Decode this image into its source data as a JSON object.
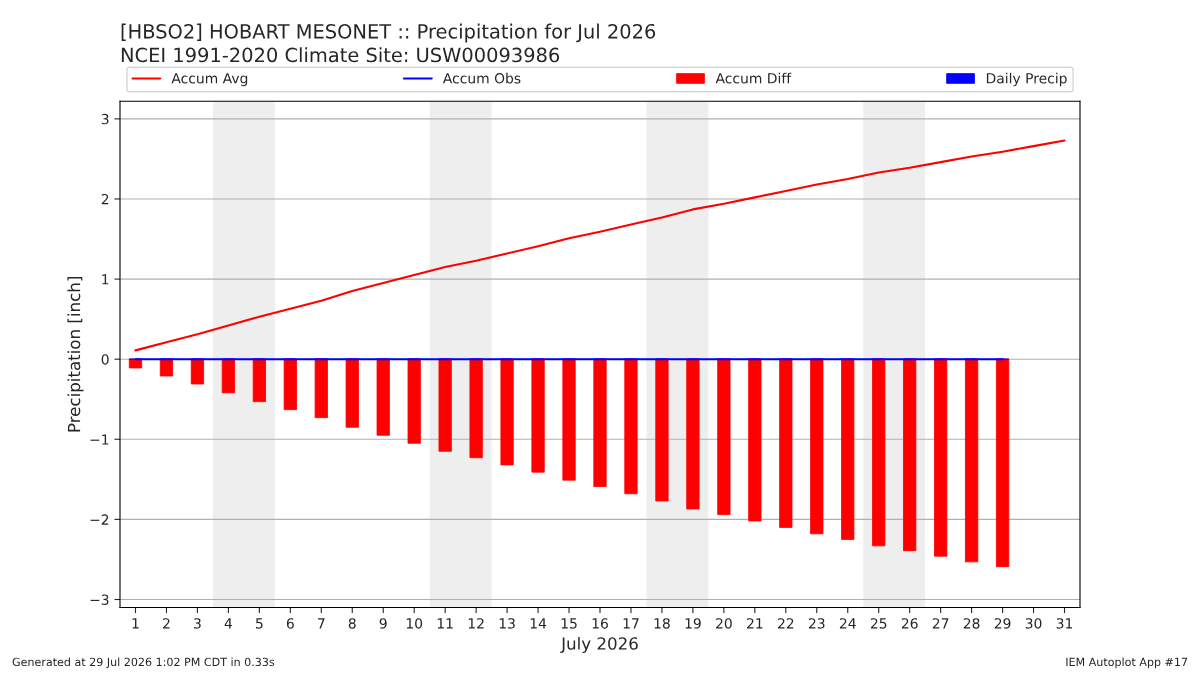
{
  "chart_data": {
    "type": "bar",
    "title": "[HBSO2] HOBART MESONET :: Precipitation for Jul 2026",
    "subtitle": "NCEI 1991-2020 Climate Site: USW00093986",
    "xlabel": "July 2026",
    "ylabel": "Precipitation [inch]",
    "x": [
      1,
      2,
      3,
      4,
      5,
      6,
      7,
      8,
      9,
      10,
      11,
      12,
      13,
      14,
      15,
      16,
      17,
      18,
      19,
      20,
      21,
      22,
      23,
      24,
      25,
      26,
      27,
      28,
      29,
      30,
      31
    ],
    "series": [
      {
        "name": "Accum Avg",
        "type": "line",
        "color": "#ff0000",
        "values": [
          0.11,
          0.21,
          0.31,
          0.42,
          0.53,
          0.63,
          0.73,
          0.85,
          0.95,
          1.05,
          1.15,
          1.23,
          1.32,
          1.41,
          1.51,
          1.59,
          1.68,
          1.77,
          1.87,
          1.94,
          2.02,
          2.1,
          2.18,
          2.25,
          2.33,
          2.39,
          2.46,
          2.53,
          2.59,
          2.66,
          2.73
        ]
      },
      {
        "name": "Accum Obs",
        "type": "line",
        "color": "#0000ff",
        "values": [
          0,
          0,
          0,
          0,
          0,
          0,
          0,
          0,
          0,
          0,
          0,
          0,
          0,
          0,
          0,
          0,
          0,
          0,
          0,
          0,
          0,
          0,
          0,
          0,
          0,
          0,
          0,
          0,
          0,
          null,
          null
        ]
      },
      {
        "name": "Accum Diff",
        "color": "#ff0000",
        "values": [
          -0.11,
          -0.21,
          -0.31,
          -0.42,
          -0.53,
          -0.63,
          -0.73,
          -0.85,
          -0.95,
          -1.05,
          -1.15,
          -1.23,
          -1.32,
          -1.41,
          -1.51,
          -1.59,
          -1.68,
          -1.77,
          -1.87,
          -1.94,
          -2.02,
          -2.1,
          -2.18,
          -2.25,
          -2.33,
          -2.39,
          -2.46,
          -2.53,
          -2.59,
          null,
          null
        ]
      },
      {
        "name": "Daily Precip",
        "color": "#0000ff",
        "values": [
          0,
          0,
          0,
          0,
          0,
          0,
          0,
          0,
          0,
          0,
          0,
          0,
          0,
          0,
          0,
          0,
          0,
          0,
          0,
          0,
          0,
          0,
          0,
          0,
          0,
          0,
          0,
          0,
          0,
          null,
          null
        ]
      }
    ],
    "bands": [
      {
        "axis": "x",
        "from": 3.5,
        "to": 5.5,
        "color": "#eeeeee"
      },
      {
        "axis": "x",
        "from": 10.5,
        "to": 12.5,
        "color": "#eeeeee"
      },
      {
        "axis": "x",
        "from": 17.5,
        "to": 19.5,
        "color": "#eeeeee"
      },
      {
        "axis": "x",
        "from": 24.5,
        "to": 26.5,
        "color": "#eeeeee"
      }
    ],
    "xlim": [
      0.5,
      31.5
    ],
    "xticks": [
      1,
      2,
      3,
      4,
      5,
      6,
      7,
      8,
      9,
      10,
      11,
      12,
      13,
      14,
      15,
      16,
      17,
      18,
      19,
      20,
      21,
      22,
      23,
      24,
      25,
      26,
      27,
      28,
      29,
      30,
      31
    ],
    "ylim": [
      -3.1,
      3.22
    ],
    "yticks": [
      -3,
      -2,
      -1,
      0,
      1,
      2,
      3
    ],
    "grid": "y",
    "legend": "top",
    "annotations": [
      "Generated at 29 Jul 2026 1:02 PM CDT in 0.33s",
      "IEM Autoplot App #17"
    ]
  }
}
